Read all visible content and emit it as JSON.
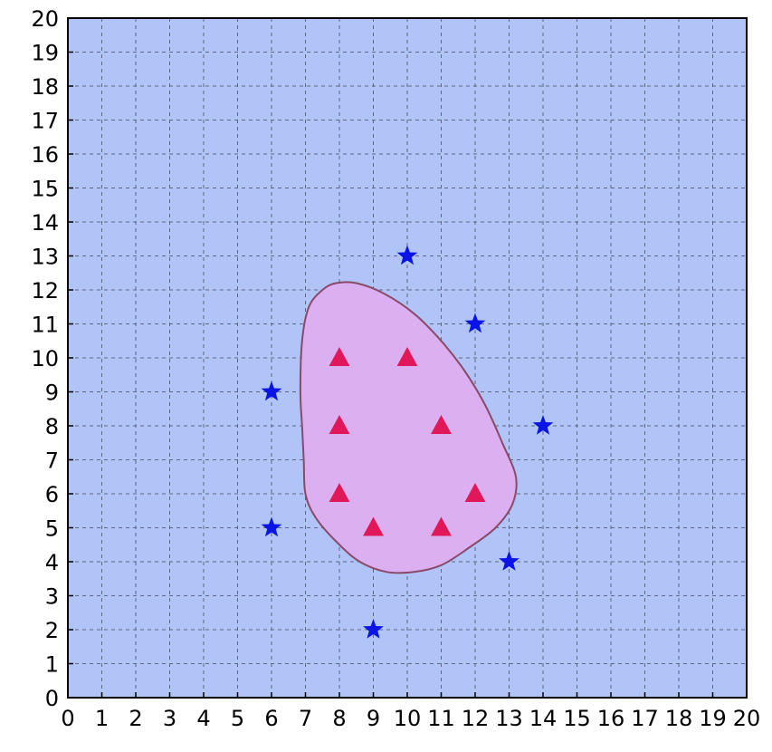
{
  "chart_data": {
    "type": "scatter",
    "title": "",
    "xlabel": "",
    "ylabel": "",
    "xlim": [
      0,
      20
    ],
    "ylim": [
      0,
      20
    ],
    "xticks": [
      0,
      1,
      2,
      3,
      4,
      5,
      6,
      7,
      8,
      9,
      10,
      11,
      12,
      13,
      14,
      15,
      16,
      17,
      18,
      19,
      20
    ],
    "yticks": [
      0,
      1,
      2,
      3,
      4,
      5,
      6,
      7,
      8,
      9,
      10,
      11,
      12,
      13,
      14,
      15,
      16,
      17,
      18,
      19,
      20
    ],
    "grid": true,
    "background_color": "#b0c4f8",
    "region": {
      "fill": "#dcb0f0",
      "stroke": "#8a4a6a",
      "boundary": [
        [
          7.9,
          12.2
        ],
        [
          8.5,
          12.2
        ],
        [
          9.3,
          11.9
        ],
        [
          10.2,
          11.3
        ],
        [
          11.0,
          10.5
        ],
        [
          11.7,
          9.6
        ],
        [
          12.3,
          8.6
        ],
        [
          12.8,
          7.5
        ],
        [
          13.2,
          6.5
        ],
        [
          13.1,
          5.7
        ],
        [
          12.6,
          5.0
        ],
        [
          11.8,
          4.4
        ],
        [
          11.0,
          3.9
        ],
        [
          10.2,
          3.7
        ],
        [
          9.4,
          3.7
        ],
        [
          8.6,
          4.0
        ],
        [
          7.9,
          4.6
        ],
        [
          7.3,
          5.3
        ],
        [
          7.0,
          6.0
        ],
        [
          6.95,
          7.0
        ],
        [
          6.9,
          8.0
        ],
        [
          6.85,
          9.0
        ],
        [
          6.9,
          10.5
        ],
        [
          7.1,
          11.5
        ],
        [
          7.5,
          12.0
        ]
      ]
    },
    "series": [
      {
        "marker": "triangle",
        "color": "#e0185a",
        "points": [
          [
            8,
            10
          ],
          [
            10,
            10
          ],
          [
            8,
            8
          ],
          [
            11,
            8
          ],
          [
            8,
            6
          ],
          [
            12,
            6
          ],
          [
            9,
            5
          ],
          [
            11,
            5
          ]
        ]
      },
      {
        "marker": "star",
        "color": "#0a14e6",
        "points": [
          [
            10,
            13
          ],
          [
            12,
            11
          ],
          [
            6,
            9
          ],
          [
            14,
            8
          ],
          [
            6,
            5
          ],
          [
            13,
            4
          ],
          [
            9,
            2
          ]
        ]
      }
    ]
  }
}
